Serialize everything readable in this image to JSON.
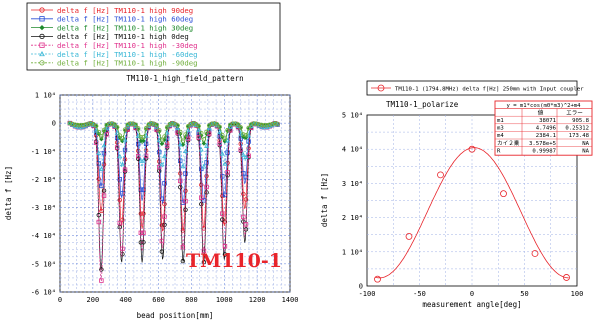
{
  "chart_data": [
    {
      "type": "line",
      "title": "TM110-1_high_field_pattern",
      "xlabel": "bead position[mm]",
      "ylabel": "delta f [Hz]",
      "xlim": [
        0,
        1400
      ],
      "ylim": [
        -60000,
        10000
      ],
      "x_ticks": [
        0,
        200,
        400,
        600,
        800,
        1000,
        1200,
        1400
      ],
      "y_ticks": [
        {
          "value": 10000,
          "label": "1 10⁴"
        },
        {
          "value": 0,
          "label": "0"
        },
        {
          "value": -10000,
          "label": "-1 10⁴"
        },
        {
          "value": -20000,
          "label": "-2 10⁴"
        },
        {
          "value": -30000,
          "label": "-3 10⁴"
        },
        {
          "value": -40000,
          "label": "-4 10⁴"
        },
        {
          "value": -50000,
          "label": "-5 10⁴"
        },
        {
          "value": -60000,
          "label": "-6 10⁴"
        }
      ],
      "grid": true,
      "legend_position": "above",
      "annotation": {
        "text": "TM110-1",
        "color": "#e8242a"
      },
      "dip_centers": [
        250,
        375,
        500,
        625,
        750,
        875,
        1000,
        1125
      ],
      "series": [
        {
          "name": "delta f [Hz] TM110-1 high 90deg",
          "color": "#e8242a",
          "marker": "circle",
          "style": "solid",
          "dip_depths": [
            -30000,
            -35000,
            -36000,
            -37000,
            -37000,
            -36000,
            -35000,
            -29000
          ]
        },
        {
          "name": "delta f [Hz] TM110-1 high 60deg",
          "color": "#2a4fd6",
          "marker": "square",
          "style": "solid",
          "dip_depths": [
            -21000,
            -25000,
            -26000,
            -27000,
            -27000,
            -26000,
            -25000,
            -20000
          ]
        },
        {
          "name": "delta f [Hz] TM110-1 high 30deg",
          "color": "#1e8a2c",
          "marker": "diamond",
          "style": "solid",
          "dip_depths": [
            -5000,
            -6000,
            -6500,
            -7000,
            -7000,
            -6500,
            -6000,
            -5000
          ]
        },
        {
          "name": "delta f [Hz] TM110-1 high 0deg",
          "color": "#111111",
          "marker": "circle",
          "style": "solid",
          "dip_depths": [
            -51000,
            -48000,
            -48000,
            -47000,
            -48000,
            -48000,
            -47000,
            -41000
          ]
        },
        {
          "name": "delta f [Hz] TM110-1 high -30deg",
          "color": "#e0308c",
          "marker": "square",
          "style": "dashed",
          "dip_depths": [
            -55000,
            -46000,
            -44000,
            -43000,
            -43000,
            -44000,
            -44000,
            -39000
          ]
        },
        {
          "name": "delta f [Hz] TM110-1 high -60deg",
          "color": "#39b7d6",
          "marker": "triangle",
          "style": "dashed",
          "dip_depths": [
            -15000,
            -14000,
            -14000,
            -14000,
            -14000,
            -14000,
            -13500,
            -12000
          ]
        },
        {
          "name": "delta f [Hz] TM110-1 high -90deg",
          "color": "#6fae3a",
          "marker": "circle",
          "style": "dashed",
          "dip_depths": [
            -4000,
            -5000,
            -5000,
            -5500,
            -5500,
            -5000,
            -5000,
            -4000
          ]
        }
      ]
    },
    {
      "type": "scatter",
      "title": "TM110-1_polarize",
      "xlabel": "measurement angle[deg]",
      "ylabel": "delta f [Hz]",
      "xlim": [
        -100,
        100
      ],
      "ylim": [
        0,
        50000
      ],
      "x_ticks": [
        -100,
        -50,
        0,
        50,
        100
      ],
      "y_ticks": [
        {
          "value": 0,
          "label": "0"
        },
        {
          "value": 10000,
          "label": "1 10⁴"
        },
        {
          "value": 20000,
          "label": "2 10⁴"
        },
        {
          "value": 30000,
          "label": "3 10⁴"
        },
        {
          "value": 40000,
          "label": "4 10⁴"
        },
        {
          "value": 50000,
          "label": "5 10⁴"
        }
      ],
      "grid": true,
      "legend": "TM110-1 (1794.8MHz) delta f[Hz] 250mm with Input coupler",
      "series": [
        {
          "name": "TM110-1 (1794.8MHz) delta f[Hz] 250mm with Input coupler",
          "color": "#e8242a",
          "marker": "circle",
          "x": [
            -90,
            -60,
            -30,
            0,
            30,
            60,
            90
          ],
          "y": [
            2000,
            14500,
            32500,
            40000,
            27000,
            9500,
            2500
          ]
        }
      ],
      "fit": {
        "equation": "y = m1*cos(m0*m3)^2+m4",
        "m1": 38071,
        "m3": 4.7496,
        "m4": 2384.1,
        "color": "#e8242a"
      },
      "fit_table": {
        "headers": [
          "",
          "値",
          "エラー"
        ],
        "rows": [
          [
            "m1",
            "38071",
            "905.8"
          ],
          [
            "m3",
            "4.7496",
            "0.25312"
          ],
          [
            "m4",
            "2384.1",
            "173.48"
          ],
          [
            "カイ２乗",
            "3.578e+5",
            "NA"
          ],
          [
            "R",
            "0.99987",
            "NA"
          ]
        ]
      }
    }
  ]
}
